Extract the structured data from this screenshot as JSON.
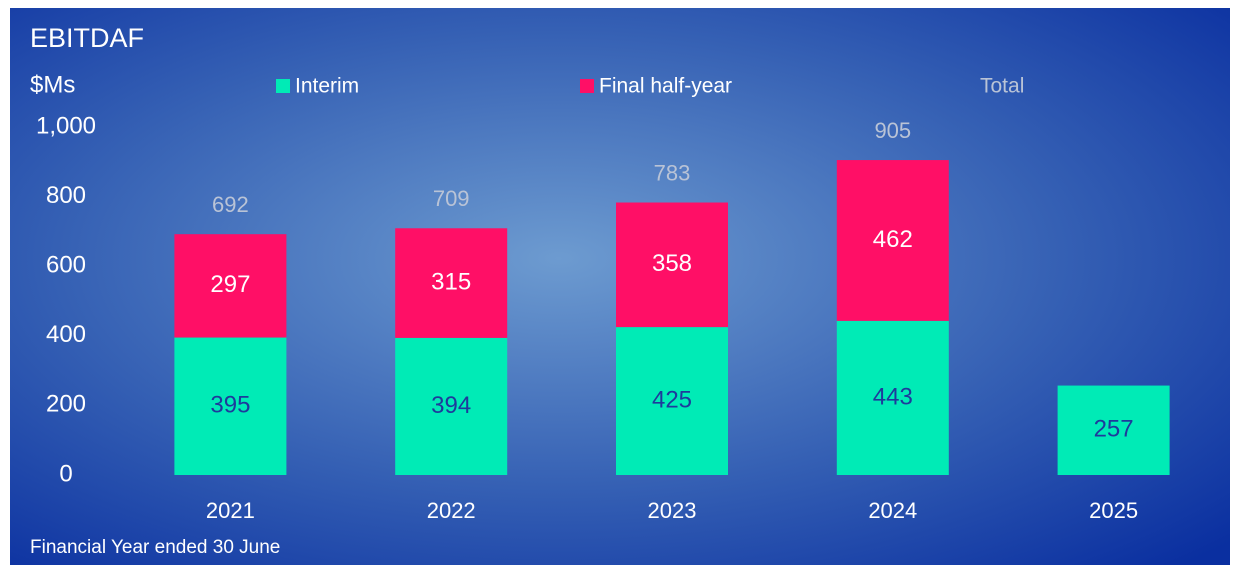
{
  "chart_data": {
    "type": "stacked_bar",
    "title": "EBITDAF",
    "y_label": "$Ms",
    "footnote": "Financial Year ended 30 June",
    "categories": [
      "2021",
      "2022",
      "2023",
      "2024",
      "2025"
    ],
    "series": [
      {
        "name": "Interim",
        "color": "#00ebb6",
        "label_color": "#1e3a9c",
        "values": [
          395,
          394,
          425,
          443,
          257
        ]
      },
      {
        "name": "Final half-year",
        "color": "#ff0f66",
        "label_color": "#ffffff",
        "values": [
          297,
          315,
          358,
          462,
          null
        ]
      }
    ],
    "totals": {
      "name": "Total",
      "color": "#b9c3d6",
      "values": [
        692,
        709,
        783,
        905,
        null
      ]
    },
    "ylim": [
      0,
      1000
    ],
    "yticks": [
      0,
      200,
      400,
      600,
      800,
      {
        "value": 1000,
        "label": "1,000"
      }
    ]
  }
}
